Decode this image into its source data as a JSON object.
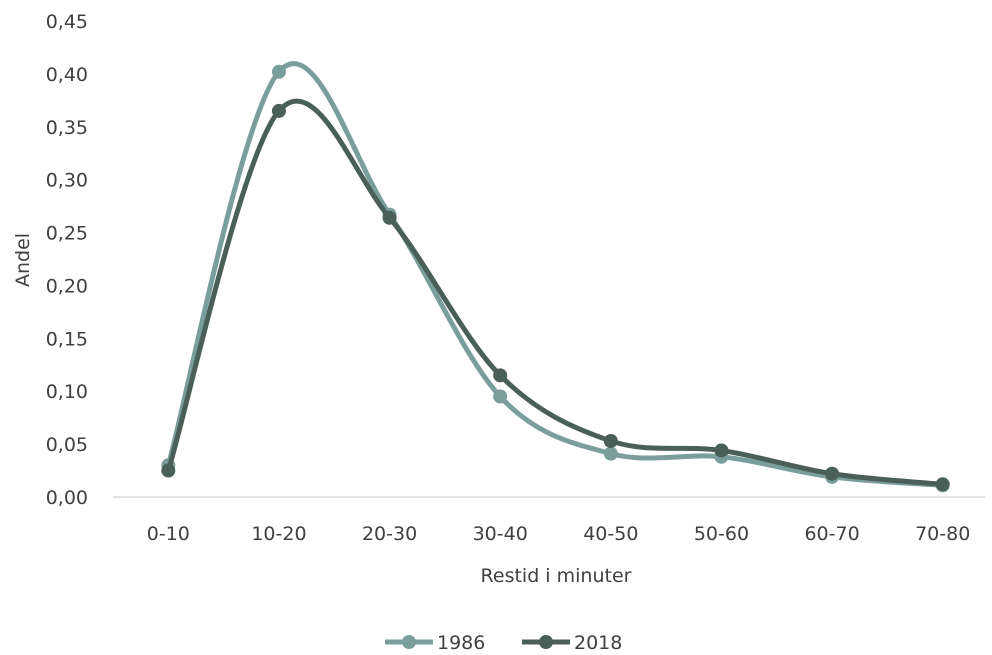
{
  "chart_data": {
    "type": "line",
    "smooth": true,
    "categories": [
      "0-10",
      "10-20",
      "20-30",
      "30-40",
      "40-50",
      "50-60",
      "60-70",
      "70-80"
    ],
    "series": [
      {
        "name": "1986",
        "color": "#7a9e9b",
        "values": [
          0.03,
          0.402,
          0.267,
          0.095,
          0.041,
          0.038,
          0.019,
          0.011
        ]
      },
      {
        "name": "2018",
        "color": "#4a5f58",
        "values": [
          0.025,
          0.365,
          0.264,
          0.115,
          0.053,
          0.044,
          0.022,
          0.012
        ]
      }
    ],
    "xlabel": "Restid i minuter",
    "ylabel": "Andel",
    "ylim": [
      0,
      0.45
    ],
    "yticks": [
      "0,00",
      "0,05",
      "0,10",
      "0,15",
      "0,20",
      "0,25",
      "0,30",
      "0,35",
      "0,40",
      "0,45"
    ],
    "grid": false,
    "legend": "bottom-center",
    "axis_color": "#d9d9d9"
  }
}
